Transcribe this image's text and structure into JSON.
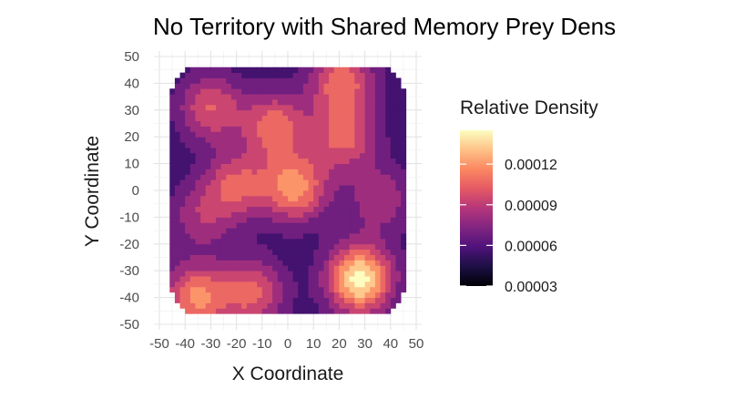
{
  "chart_data": {
    "type": "heatmap",
    "subtype": "filled-density-contour",
    "title": "No Territory with Shared Memory Prey Dens",
    "xlabel": "X Coordinate",
    "ylabel": "Y Coordinate",
    "xlim": [
      -50,
      50
    ],
    "ylim": [
      -50,
      50
    ],
    "x_ticks": [
      -50,
      -40,
      -30,
      -20,
      -10,
      0,
      10,
      20,
      30,
      40,
      50
    ],
    "y_ticks": [
      -50,
      -40,
      -30,
      -20,
      -10,
      0,
      10,
      20,
      30,
      40,
      50
    ],
    "x_tick_labels": [
      "-50",
      "-40",
      "-30",
      "-20",
      "-10",
      "0",
      "10",
      "20",
      "30",
      "40",
      "50"
    ],
    "y_tick_labels": [
      "-50",
      "-40",
      "-30",
      "-20",
      "-10",
      "0",
      "10",
      "20",
      "30",
      "40",
      "50"
    ],
    "grid": true,
    "legend": {
      "title": "Relative Density",
      "position": "right",
      "range": [
        3e-05,
        0.000145
      ],
      "breaks": [
        3e-05,
        6e-05,
        9e-05,
        0.00012
      ],
      "break_labels": [
        "0.00003",
        "0.00006",
        "0.00009",
        "0.00012"
      ]
    },
    "colormap": [
      "#000004",
      "#1c1044",
      "#4f127b",
      "#812581",
      "#b5367a",
      "#e55964",
      "#fb8761",
      "#fec287",
      "#fcfdbf"
    ],
    "baseline_density": 5.2e-05,
    "density_hotspots": [
      {
        "x": 28,
        "y": -33,
        "density": 0.000145
      },
      {
        "x": 3,
        "y": 1,
        "density": 0.000118
      },
      {
        "x": -5,
        "y": 24,
        "density": 0.000108
      },
      {
        "x": 22,
        "y": 20,
        "density": 0.000102
      },
      {
        "x": -36,
        "y": -40,
        "density": 0.000115
      },
      {
        "x": -14,
        "y": -38,
        "density": 0.000104
      },
      {
        "x": -30,
        "y": 31,
        "density": 0.0001
      },
      {
        "x": 21,
        "y": 41,
        "density": 0.000108
      },
      {
        "x": -20,
        "y": 2,
        "density": 0.0001
      },
      {
        "x": -34,
        "y": -10,
        "density": 8.2e-05
      },
      {
        "x": 36,
        "y": -3,
        "density": 8.5e-05
      }
    ]
  }
}
